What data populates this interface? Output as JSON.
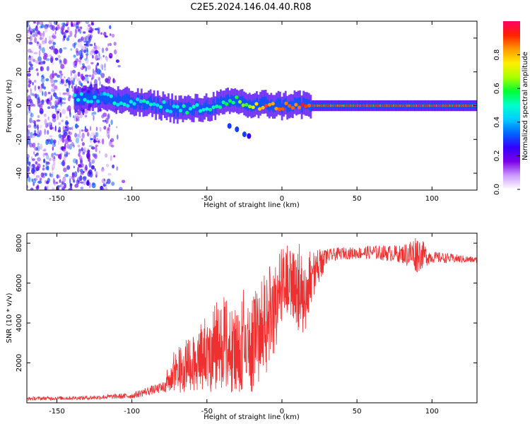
{
  "figure": {
    "title": "C2E5.2024.146.04.40.R08"
  },
  "chart_data": [
    {
      "type": "heatmap",
      "title": "",
      "xlabel": "Height of straight line (km)",
      "ylabel": "Frequency (Hz)",
      "xlim": [
        -170,
        130
      ],
      "ylim": [
        -50,
        50
      ],
      "xticks": [
        -150,
        -100,
        -50,
        0,
        50,
        100
      ],
      "yticks": [
        -40,
        -20,
        0,
        20,
        40
      ],
      "colorbar": {
        "label": "Normalized spectral amplitude",
        "range": [
          0,
          1
        ],
        "ticks": [
          "0.0",
          "0.2",
          "0.4",
          "0.6",
          "0.8"
        ],
        "colors": [
          "#ffffff",
          "#cc99ff",
          "#7a00e6",
          "#3300ff",
          "#0066ff",
          "#00ccff",
          "#00ffcc",
          "#00ff33",
          "#aaff00",
          "#ffee00",
          "#ff9900",
          "#ff2200",
          "#ff0066"
        ]
      },
      "spectral_ridge": [
        {
          "x": -138,
          "y": 5,
          "amp": 0.45
        },
        {
          "x": -130,
          "y": 4,
          "amp": 0.45
        },
        {
          "x": -120,
          "y": 5,
          "amp": 0.4
        },
        {
          "x": -110,
          "y": 3,
          "amp": 0.5
        },
        {
          "x": -100,
          "y": 2,
          "amp": 0.45
        },
        {
          "x": -90,
          "y": 1,
          "amp": 0.5
        },
        {
          "x": -80,
          "y": 0,
          "amp": 0.45
        },
        {
          "x": -70,
          "y": -2,
          "amp": 0.5
        },
        {
          "x": -60,
          "y": -2,
          "amp": 0.5
        },
        {
          "x": -50,
          "y": -1,
          "amp": 0.55
        },
        {
          "x": -40,
          "y": 1,
          "amp": 0.5
        },
        {
          "x": -30,
          "y": 3,
          "amp": 0.6
        },
        {
          "x": -20,
          "y": 0,
          "amp": 0.7
        },
        {
          "x": -10,
          "y": 1,
          "amp": 0.85
        },
        {
          "x": 0,
          "y": 0,
          "amp": 0.9
        },
        {
          "x": 10,
          "y": 1,
          "amp": 0.9
        },
        {
          "x": 20,
          "y": 0,
          "amp": 0.92
        },
        {
          "x": 50,
          "y": 0,
          "amp": 0.95
        },
        {
          "x": 80,
          "y": 0,
          "amp": 0.95
        },
        {
          "x": 100,
          "y": 0,
          "amp": 0.95
        },
        {
          "x": 130,
          "y": 0,
          "amp": 0.95
        }
      ],
      "secondary_feature": [
        {
          "x": -35,
          "y": -12,
          "amp": 0.3
        },
        {
          "x": -30,
          "y": -14,
          "amp": 0.3
        },
        {
          "x": -25,
          "y": -17,
          "amp": 0.3
        },
        {
          "x": -22,
          "y": -18,
          "amp": 0.25
        }
      ],
      "noise_region": {
        "x_range": [
          -170,
          -105
        ],
        "y_range": [
          -50,
          50
        ],
        "amp_range": [
          0.05,
          0.35
        ]
      }
    },
    {
      "type": "line",
      "title": "",
      "xlabel": "Height of straight line (km)",
      "ylabel": "SNR (10 * v/v)",
      "xlim": [
        -170,
        130
      ],
      "ylim": [
        0,
        8500
      ],
      "xticks": [
        -150,
        -100,
        -50,
        0,
        50,
        100
      ],
      "yticks": [
        2000,
        4000,
        6000,
        8000
      ],
      "series": [
        {
          "name": "SNR",
          "color": "#ee3030",
          "envelope": {
            "x": [
              -170,
              -130,
              -100,
              -90,
              -80,
              -75,
              -70,
              -60,
              -50,
              -40,
              -30,
              -25,
              -20,
              -15,
              -10,
              -5,
              0,
              5,
              10,
              15,
              20,
              25,
              30,
              40,
              50,
              60,
              70,
              80,
              85,
              90,
              95,
              100,
              110,
              130
            ],
            "low": [
              120,
              150,
              200,
              350,
              500,
              500,
              500,
              500,
              500,
              500,
              400,
              300,
              300,
              800,
              1500,
              2500,
              4000,
              4500,
              3500,
              3500,
              5000,
              6000,
              7000,
              7200,
              7200,
              7200,
              7100,
              7000,
              6700,
              6500,
              6800,
              7000,
              7000,
              7000
            ],
            "high": [
              300,
              350,
              500,
              800,
              1000,
              2000,
              3000,
              3500,
              4500,
              5500,
              5000,
              6000,
              5500,
              5800,
              6800,
              7000,
              7800,
              8000,
              8100,
              7800,
              7500,
              7700,
              7700,
              7800,
              7800,
              7900,
              7900,
              7900,
              8200,
              8500,
              8000,
              7600,
              7500,
              7300
            ]
          }
        }
      ]
    }
  ]
}
